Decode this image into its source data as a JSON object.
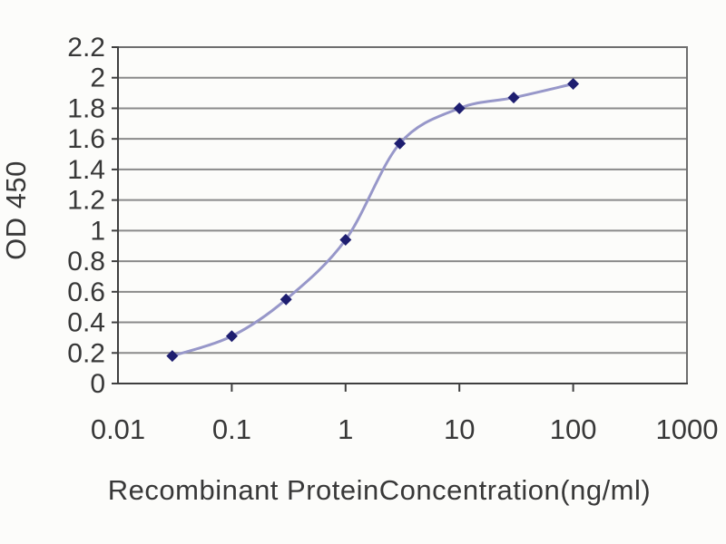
{
  "figure": {
    "background": "#fcfcfa"
  },
  "chart_data": {
    "type": "line",
    "xlabel": "Recombinant ProteinConcentration(ng/ml)",
    "ylabel": "OD 450",
    "x_scale": "log",
    "xlim": [
      0.01,
      1000
    ],
    "ylim": [
      0,
      2.2
    ],
    "x_ticks": [
      "0.01",
      "0.1",
      "1",
      "10",
      "100",
      "1000"
    ],
    "y_ticks": [
      "0",
      "0.2",
      "0.4",
      "0.6",
      "0.8",
      "1",
      "1.2",
      "1.4",
      "1.6",
      "1.8",
      "2",
      "2.2"
    ],
    "grid": "horizontal",
    "legend": "none",
    "series": [
      {
        "name": "OD 450",
        "marker": "diamond",
        "x": [
          0.03,
          0.1,
          0.3,
          1,
          3,
          10,
          30,
          100
        ],
        "y": [
          0.18,
          0.31,
          0.55,
          0.94,
          1.57,
          1.8,
          1.87,
          1.96
        ]
      }
    ],
    "colors": {
      "line": "#9797c9",
      "marker": "#1e1e70",
      "grid": "#8a8a8a",
      "border": "#6e6e6e",
      "axis": "#3f3f3f",
      "text": "#383838"
    }
  }
}
